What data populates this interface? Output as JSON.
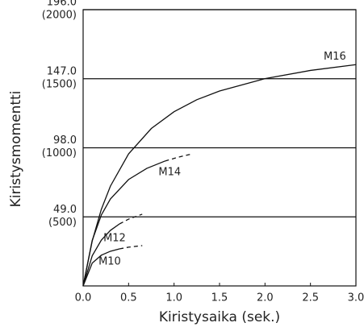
{
  "chart_data": {
    "type": "line",
    "x_label": "Kiristysaika (sek.)",
    "y_label": "Kiristysmomentti",
    "xlim": [
      0,
      3
    ],
    "ylim": [
      0,
      196
    ],
    "xticks": [
      {
        "value": 0,
        "label": "0.0"
      },
      {
        "value": 0.5,
        "label": "0.5"
      },
      {
        "value": 1,
        "label": "1.0"
      },
      {
        "value": 1.5,
        "label": "1.5"
      },
      {
        "value": 2,
        "label": "2.0"
      },
      {
        "value": 2.5,
        "label": "2.5"
      },
      {
        "value": 3,
        "label": "3.0"
      }
    ],
    "yticks": [
      {
        "value": 49,
        "label": "49.0"
      },
      {
        "value": 98,
        "label": "98.0"
      },
      {
        "value": 147,
        "label": "147.0"
      },
      {
        "value": 196,
        "label": "196.0"
      }
    ],
    "ytick_alt_labels": [
      "(500)",
      "(1000)",
      "(1500)",
      "(2000)"
    ],
    "grid": true,
    "color": "#111111",
    "series": [
      {
        "name": "M16",
        "style": "solid",
        "x": [
          0,
          0.1,
          0.2,
          0.3,
          0.5,
          0.75,
          1,
          1.25,
          1.5,
          2,
          2.5,
          3
        ],
        "values": [
          0,
          31.9,
          54.3,
          70.8,
          93.7,
          111.7,
          123.6,
          132.1,
          138.3,
          147.1,
          152.9,
          157
        ]
      },
      {
        "name": "M14",
        "style": "solid",
        "x": [
          0,
          0.1,
          0.2,
          0.3,
          0.5,
          0.7,
          0.9
        ],
        "values": [
          0,
          32.3,
          50.3,
          61.7,
          75.5,
          83.4,
          88.6
        ]
      },
      {
        "style": "dashed",
        "x": [
          0.9,
          1.05,
          1.2
        ],
        "values": [
          88.6,
          91.4,
          93.7
        ]
      },
      {
        "name": "M12",
        "style": "solid",
        "x": [
          0,
          0.1,
          0.2,
          0.3,
          0.4
        ],
        "values": [
          0,
          21.4,
          32.5,
          39.4,
          44
        ]
      },
      {
        "style": "dashed",
        "x": [
          0.4,
          0.5,
          0.65
        ],
        "values": [
          44,
          47.4,
          50.9
        ]
      },
      {
        "name": "M10",
        "style": "solid",
        "x": [
          0,
          0.1,
          0.2,
          0.3,
          0.4
        ],
        "values": [
          0,
          16.2,
          21.8,
          24.6,
          26.3
        ]
      },
      {
        "style": "dashed",
        "x": [
          0.4,
          0.5,
          0.65
        ],
        "values": [
          26.3,
          27.5,
          28.6
        ]
      }
    ]
  }
}
